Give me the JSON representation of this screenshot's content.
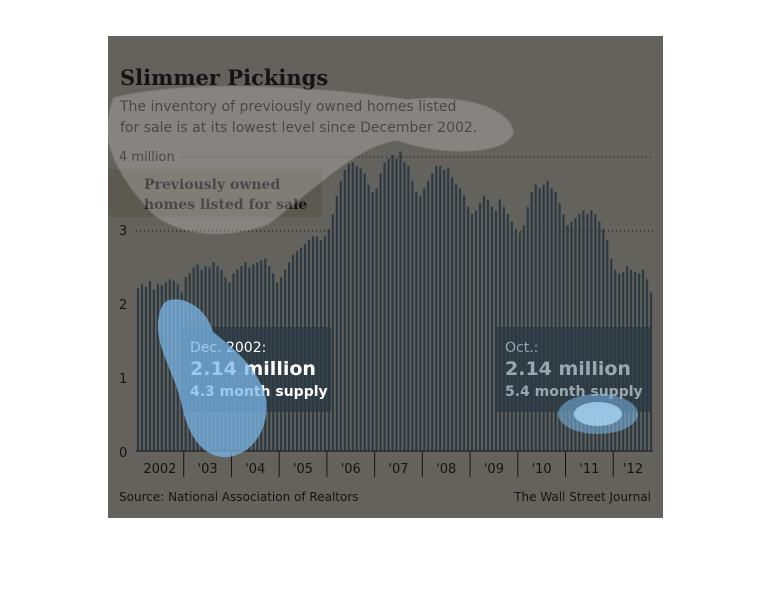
{
  "chart_data": {
    "type": "bar",
    "title": "Slimmer Pickings",
    "subtitle_lines": [
      "The inventory of previously owned homes listed",
      "for sale is at its lowest level since December 2002."
    ],
    "series_label_lines": [
      "Previously owned",
      "homes listed for sale"
    ],
    "y_tick_labels": [
      "0",
      "1",
      "2",
      "3",
      "4 million"
    ],
    "y_ticks": [
      0,
      1,
      2,
      3,
      4
    ],
    "ylim": [
      0,
      4.2
    ],
    "grid": "dotted at 3 and 4",
    "x_tick_labels": [
      "2002",
      "'03",
      "'04",
      "'05",
      "'06",
      "'07",
      "'08",
      "'09",
      "'10",
      "'11",
      "'12"
    ],
    "start": "2002-01",
    "end": "2012-10",
    "values": [
      2.2,
      2.25,
      2.22,
      2.3,
      2.18,
      2.26,
      2.24,
      2.28,
      2.32,
      2.3,
      2.25,
      2.14,
      2.35,
      2.4,
      2.48,
      2.52,
      2.45,
      2.5,
      2.48,
      2.55,
      2.5,
      2.45,
      2.35,
      2.28,
      2.4,
      2.45,
      2.5,
      2.55,
      2.48,
      2.52,
      2.55,
      2.58,
      2.6,
      2.5,
      2.4,
      2.28,
      2.35,
      2.45,
      2.55,
      2.65,
      2.7,
      2.75,
      2.8,
      2.85,
      2.9,
      2.9,
      2.85,
      2.9,
      3.0,
      3.2,
      3.45,
      3.65,
      3.8,
      3.88,
      3.9,
      3.85,
      3.82,
      3.75,
      3.6,
      3.5,
      3.55,
      3.75,
      3.9,
      3.95,
      4.0,
      3.95,
      4.05,
      3.9,
      3.85,
      3.65,
      3.5,
      3.45,
      3.55,
      3.65,
      3.75,
      3.85,
      3.85,
      3.8,
      3.82,
      3.7,
      3.6,
      3.55,
      3.45,
      3.3,
      3.2,
      3.25,
      3.35,
      3.45,
      3.4,
      3.3,
      3.25,
      3.4,
      3.3,
      3.2,
      3.1,
      3.0,
      2.95,
      3.05,
      3.3,
      3.5,
      3.6,
      3.55,
      3.6,
      3.65,
      3.55,
      3.5,
      3.35,
      3.2,
      3.05,
      3.1,
      3.15,
      3.2,
      3.25,
      3.2,
      3.25,
      3.2,
      3.1,
      3.0,
      2.85,
      2.6,
      2.45,
      2.4,
      2.42,
      2.5,
      2.45,
      2.42,
      2.4,
      2.45,
      2.32,
      2.14
    ],
    "annotations": [
      {
        "date": "2002-12",
        "head": "Dec. 2002:",
        "value": "2.14 million",
        "supply": "4.3 month supply"
      },
      {
        "date": "2012-10",
        "head": "Oct.:",
        "value": "2.14 million",
        "supply": "5.4 month supply"
      }
    ],
    "source": "Source: National Association of Realtors",
    "credit": "The Wall Street Journal"
  },
  "colors": {
    "panel": "#64625c",
    "bar": "#2c3a44",
    "text": "#141414",
    "note_box": "#2c3a44",
    "highlight_blue": "#7ab6e6"
  }
}
